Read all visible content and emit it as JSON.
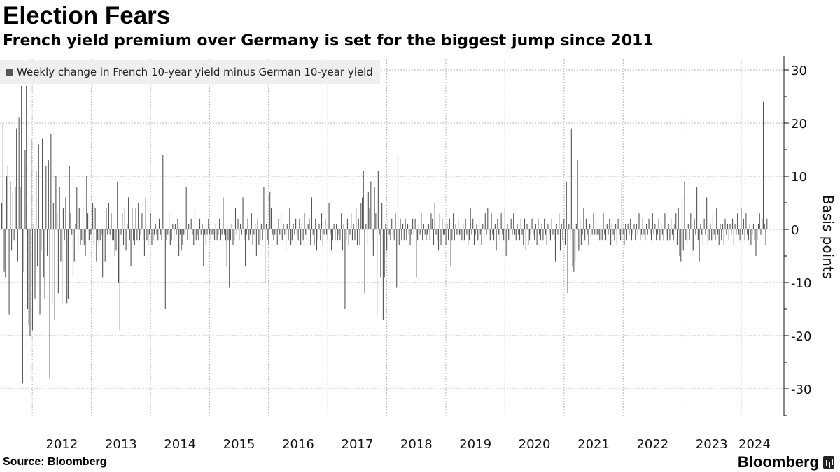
{
  "header": {
    "title": "Election Fears",
    "subtitle": "French yield premium over Germany is set for the biggest jump since 2011"
  },
  "footer": {
    "source": "Source: Bloomberg",
    "brand": "Bloomberg"
  },
  "colors": {
    "bar": "#555555",
    "grid": "#b5b5b5",
    "legend_bg": "#efefef"
  },
  "chart_data": {
    "type": "bar",
    "title": "Election Fears",
    "subtitle": "French yield premium over Germany is set for the biggest jump since 2011",
    "ylabel": "Basis points",
    "xlabel": "",
    "ylim": [
      -35,
      32
    ],
    "yticks": [
      30,
      20,
      10,
      0,
      -10,
      -20,
      -30
    ],
    "ytick_labels": [
      "30",
      "20",
      "10",
      "0",
      "-10",
      "-20",
      "-30"
    ],
    "xticks": [
      "2012",
      "2013",
      "2014",
      "2015",
      "2016",
      "2017",
      "2018",
      "2019",
      "2020",
      "2021",
      "2022",
      "2023",
      "2024"
    ],
    "x_start": "2011-06-24",
    "x_end": "2024-06-14",
    "grid": true,
    "legend_position": "top-left",
    "series": [
      {
        "name": "Weekly change in French 10-year yield minus German 10-year yield",
        "values": [
          5,
          20,
          -8,
          -9,
          10,
          12,
          -16,
          9,
          -4,
          7,
          -2,
          8,
          19,
          -6,
          21,
          8,
          27,
          -29,
          -8,
          15,
          27,
          -15,
          -18,
          -20,
          17,
          -19,
          1,
          -13,
          11,
          -7,
          16,
          -16,
          -4,
          17,
          -9,
          -13,
          12,
          -5,
          13,
          -28,
          18,
          -14,
          5,
          -17,
          10,
          3,
          -12,
          8,
          -6,
          -14,
          4,
          -2,
          6,
          -14,
          -13,
          12,
          3,
          -1,
          -9,
          -6,
          1,
          8,
          -4,
          4,
          -3,
          -2,
          7,
          -3,
          -5,
          10,
          3,
          -2,
          -1,
          -1,
          5,
          -3,
          4,
          -6,
          -2,
          -3,
          -2,
          -1,
          -9,
          -1,
          -6,
          4,
          -1,
          5,
          -1,
          3,
          -2,
          -2,
          -5,
          -4,
          9,
          -10,
          -19,
          -1,
          3,
          -3,
          4,
          -4,
          1,
          6,
          -2,
          -7,
          4,
          -2,
          -3,
          4,
          -2,
          5,
          -2,
          -1,
          3,
          -2,
          -5,
          6,
          -2,
          -3,
          -1,
          3,
          -3,
          -2,
          -1,
          1,
          -1,
          -2,
          2,
          -1,
          -2,
          14,
          -1,
          -15,
          -2,
          -1,
          3,
          -3,
          -2,
          1,
          -2,
          1,
          -1,
          2,
          -5,
          -1,
          -4,
          -3,
          -1,
          -1,
          8,
          -2,
          1,
          -2,
          2,
          -1,
          -3,
          4,
          -2,
          -1,
          -2,
          2,
          -1,
          1,
          -7,
          -1,
          -3,
          -1,
          2,
          -1,
          -2,
          -1,
          -1,
          -2,
          1,
          -2,
          -1,
          2,
          -2,
          -1,
          6,
          -1,
          -2,
          -7,
          -2,
          -11,
          -2,
          1,
          -3,
          -2,
          4,
          -1,
          2,
          -2,
          1,
          -1,
          6,
          -2,
          -7,
          -1,
          2,
          -2,
          -1,
          3,
          -3,
          -1,
          1,
          -5,
          2,
          -3,
          -2,
          1,
          -2,
          8,
          -10,
          1,
          -2,
          -3,
          7,
          4,
          -1,
          -2,
          -1,
          -1,
          -3,
          2,
          -1,
          3,
          -2,
          1,
          -1,
          -4,
          1,
          -2,
          4,
          -3,
          -2,
          1,
          -1,
          2,
          -1,
          -2,
          2,
          -3,
          1,
          -2,
          3,
          -1,
          -2,
          1,
          2,
          -3,
          6,
          -1,
          -3,
          2,
          -4,
          -2,
          1,
          -2,
          3,
          -3,
          -1,
          2,
          -1,
          -2,
          5,
          -1,
          -4,
          -2,
          1,
          -2,
          1,
          -2,
          -1,
          -2,
          3,
          -4,
          1,
          -15,
          -2,
          2,
          -3,
          -1,
          3,
          -2,
          1,
          -2,
          4,
          -3,
          2,
          -3,
          5,
          6,
          11,
          -12,
          1,
          -3,
          7,
          4,
          9,
          -2,
          -5,
          8,
          3,
          -16,
          11,
          -1,
          -9,
          5,
          -17,
          -9,
          1,
          -4,
          2,
          -1,
          -2,
          2,
          -1,
          -2,
          3,
          -11,
          14,
          -3,
          2,
          -2,
          1,
          -2,
          2,
          -2,
          1,
          -1,
          -3,
          -1,
          2,
          -1,
          2,
          -9,
          -2,
          1,
          -1,
          3,
          -2,
          1,
          -1,
          -2,
          -1,
          1,
          -2,
          3,
          2,
          -3,
          5,
          -1,
          -2,
          -4,
          3,
          -3,
          2,
          -1,
          -1,
          -3,
          1,
          -2,
          2,
          -7,
          -2,
          3,
          -2,
          1,
          -1,
          2,
          -1,
          -1,
          -2,
          1,
          -2,
          2,
          -1,
          -3,
          -2,
          4,
          -1,
          2,
          -3,
          -1,
          1,
          -2,
          2,
          -1,
          -3,
          1,
          -2,
          3,
          -1,
          4,
          -1,
          -2,
          3,
          -1,
          -2,
          1,
          -4,
          2,
          -1,
          -2,
          3,
          -1,
          -2,
          4,
          -5,
          1,
          -2,
          -1,
          2,
          -1,
          3,
          -1,
          -2,
          1,
          -1,
          -2,
          2,
          -1,
          -3,
          2,
          -4,
          1,
          -3,
          -2,
          -1,
          2,
          -1,
          -2,
          1,
          -3,
          2,
          -1,
          -2,
          1,
          -2,
          2,
          -1,
          -3,
          1,
          -1,
          -2,
          2,
          -1,
          -2,
          -6,
          1,
          -1,
          3,
          -4,
          1,
          -2,
          2,
          -3,
          9,
          -12,
          1,
          -2,
          19,
          -7,
          -8,
          -6,
          1,
          13,
          -4,
          2,
          -3,
          -1,
          4,
          -2,
          2,
          -1,
          -3,
          1,
          -2,
          -1,
          3,
          -1,
          2,
          -1,
          -1,
          -2,
          1,
          -2,
          3,
          -1,
          -2,
          1,
          -1,
          2,
          -3,
          1,
          -1,
          -2,
          1,
          -3,
          2,
          -1,
          -2,
          9,
          -1,
          -3,
          1,
          -2,
          1,
          -1,
          2,
          -2,
          -1,
          1,
          -2,
          1,
          -1,
          3,
          -2,
          -1,
          2,
          -1,
          -2,
          1,
          -1,
          2,
          -1,
          -2,
          3,
          -1,
          1,
          -2,
          -1,
          2,
          -2,
          1,
          -1,
          -2,
          3,
          -1,
          -2,
          1,
          -2,
          2,
          -1,
          -2,
          1,
          3,
          -3,
          4,
          -5,
          -6,
          6,
          -4,
          9,
          -2,
          -3,
          1,
          -2,
          3,
          -5,
          -4,
          2,
          -1,
          8,
          -2,
          -6,
          1,
          -1,
          -3,
          2,
          -1,
          6,
          -3,
          -2,
          1,
          -2,
          3,
          -1,
          -2,
          4,
          -1,
          -3,
          1,
          -2,
          1,
          -3,
          2,
          -1,
          1,
          -2,
          1,
          -1,
          2,
          -3,
          1,
          -1,
          3,
          -1,
          -2,
          4,
          -1,
          2,
          -2,
          3,
          -1,
          -2,
          1,
          -3,
          -1,
          1,
          -2,
          -5,
          -2,
          1,
          3,
          -1,
          2,
          24,
          1,
          -3,
          2
        ]
      }
    ]
  }
}
